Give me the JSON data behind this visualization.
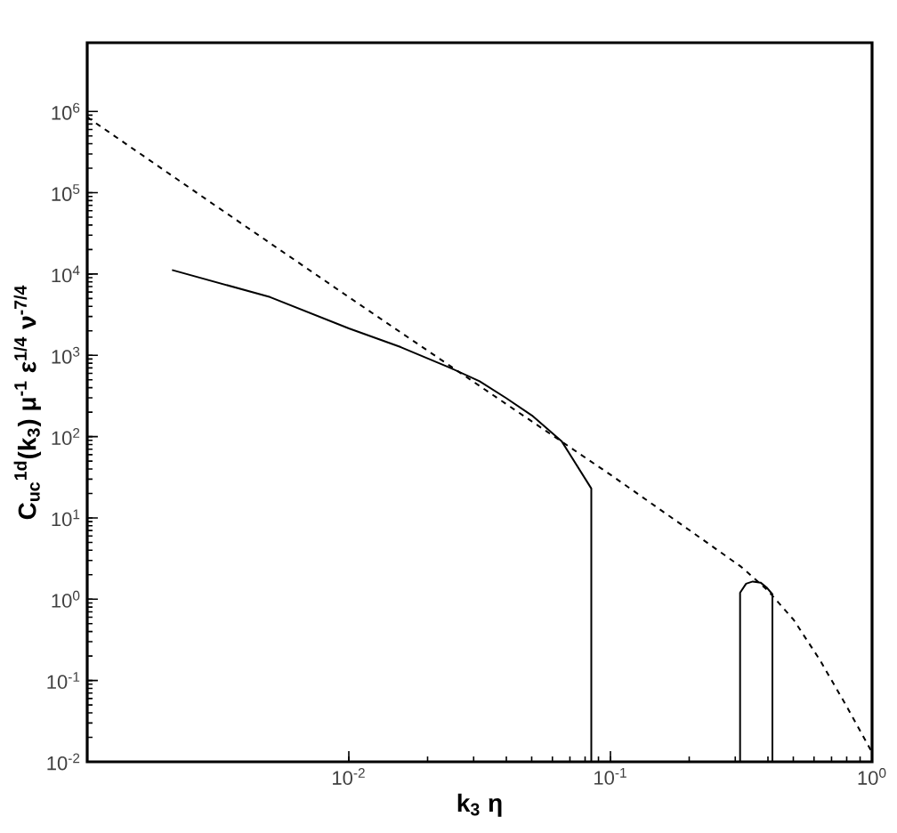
{
  "chart_data": {
    "type": "line",
    "xlabel": "k$_{3}$ η",
    "ylabel": "C$_{uc}$$^{1d}$(k$_{3}$) μ$^{-1}$ ε$^{1/4}$ ν$^{-7/4}$",
    "log": "xy",
    "grid": false,
    "marker": "none",
    "xlim": [
      0.001,
      1
    ],
    "ylim": [
      0.01,
      7000000
    ],
    "xticks": [
      {
        "value": 0.01,
        "label": "10$^{-2}$"
      },
      {
        "value": 0.1,
        "label": "10$^{-1}$"
      },
      {
        "value": 1,
        "label": "10$^{0}$"
      }
    ],
    "yticks": [
      {
        "value": 0.01,
        "label": "10$^{-2}$"
      },
      {
        "value": 0.1,
        "label": "10$^{-1}$"
      },
      {
        "value": 1,
        "label": "10$^{0}$"
      },
      {
        "value": 10,
        "label": "10$^{1}$"
      },
      {
        "value": 100,
        "label": "10$^{2}$"
      },
      {
        "value": 1000,
        "label": "10$^{3}$"
      },
      {
        "value": 10000,
        "label": "10$^{4}$"
      },
      {
        "value": 100000,
        "label": "10$^{5}$"
      },
      {
        "value": 1000000,
        "label": "10$^{6}$"
      }
    ],
    "series": [
      {
        "color": "#000000",
        "line_style": "solid",
        "x": [
          0.00211,
          0.005,
          0.01,
          0.0158,
          0.0242,
          0.0316,
          0.0398,
          0.0501,
          0.0652,
          0.0845,
          0.0845
        ],
        "values": [
          11200,
          5200,
          2140,
          1260,
          710,
          480,
          300,
          182,
          87,
          23,
          0.01
        ]
      },
      {
        "color": "#000000",
        "line_style": "solid",
        "x": [
          0.313,
          0.313,
          0.33,
          0.35,
          0.375,
          0.395,
          0.416,
          0.416
        ],
        "values": [
          0.01,
          1.2,
          1.55,
          1.65,
          1.6,
          1.4,
          1.15,
          0.01
        ]
      },
      {
        "color": "#000000",
        "line_style": "dashed",
        "x": [
          0.001,
          0.00316,
          0.01,
          0.0316,
          0.1,
          0.2,
          0.316,
          0.398,
          0.501,
          0.631,
          0.794,
          1
        ],
        "values": [
          850000,
          66000,
          5200,
          420,
          34,
          7.1,
          2.5,
          1.3,
          0.56,
          0.18,
          0.05,
          0.013
        ]
      }
    ]
  }
}
